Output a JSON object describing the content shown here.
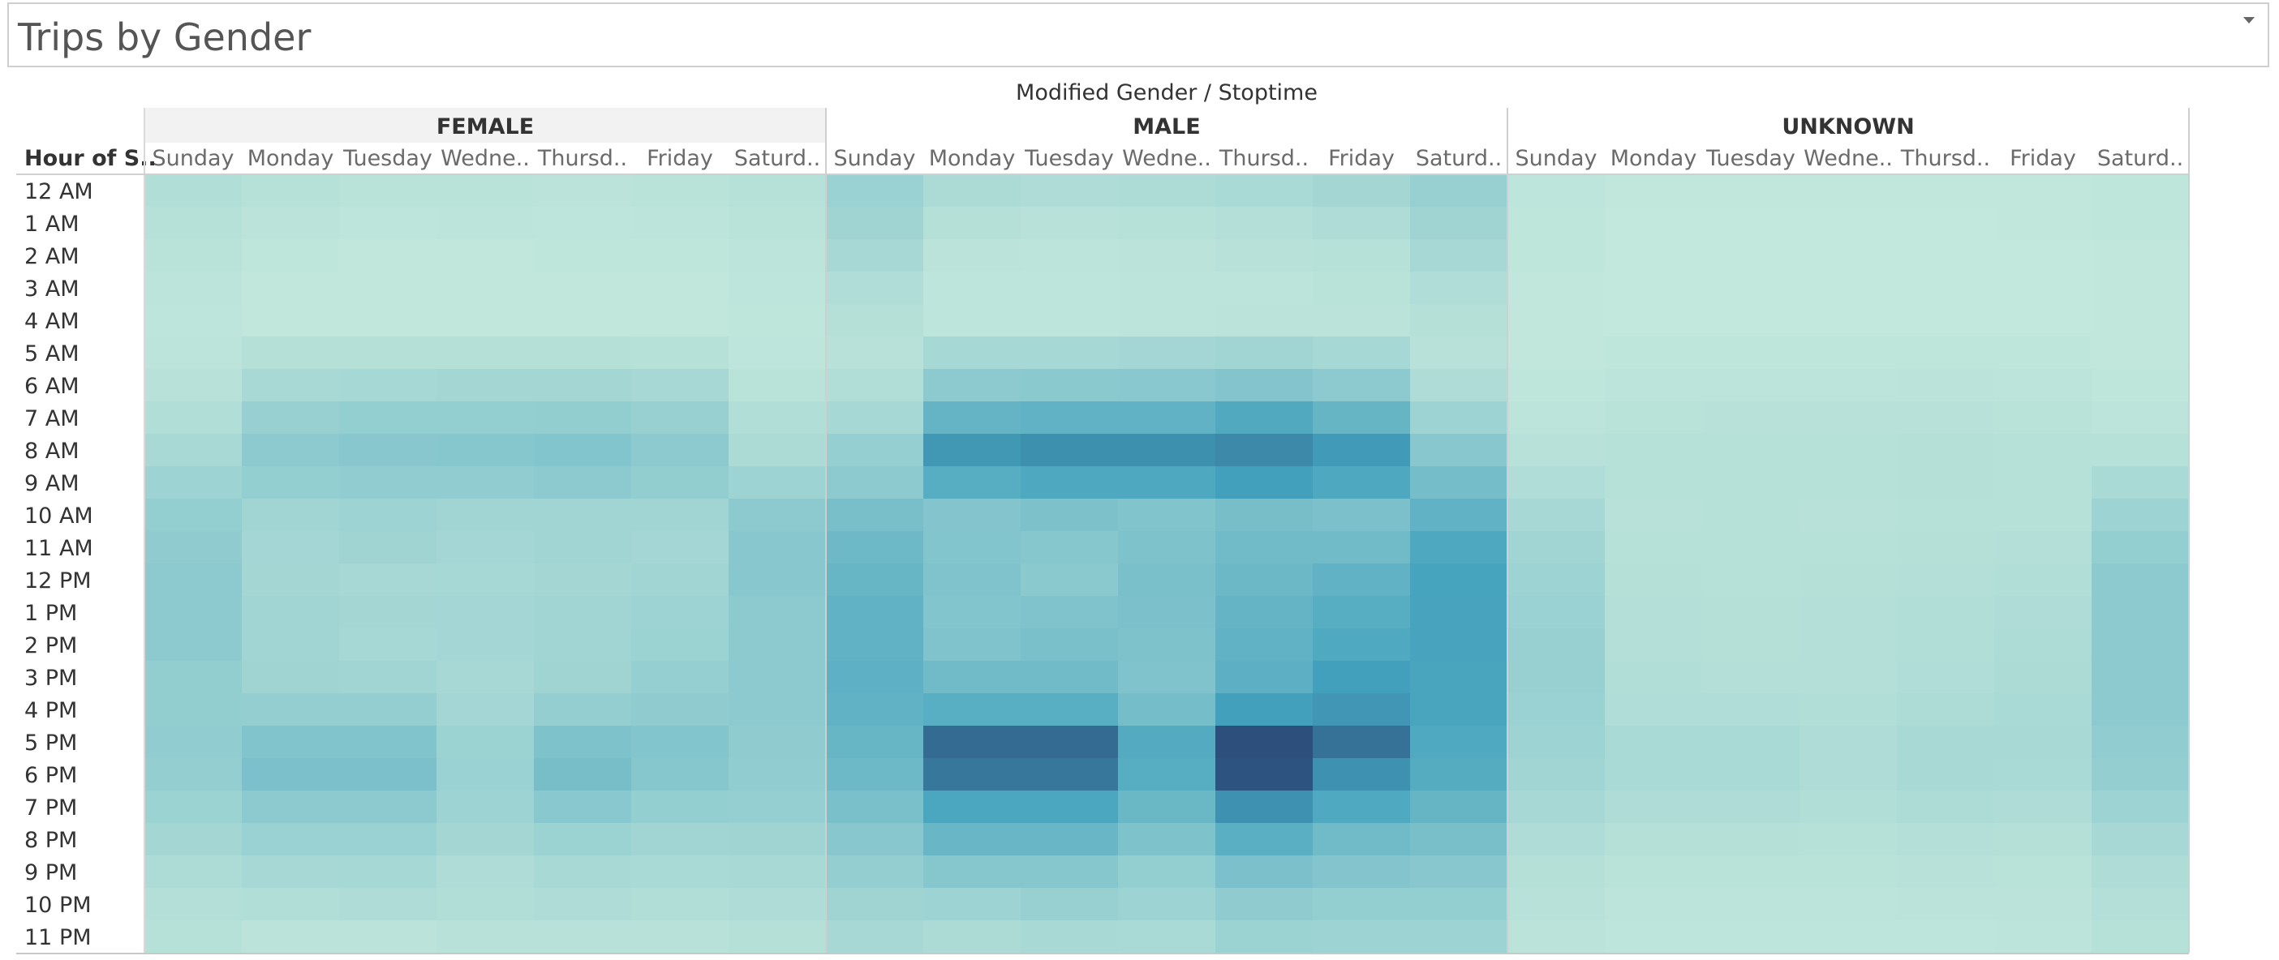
{
  "header": {
    "title": "Trips by Gender"
  },
  "chart_data": {
    "type": "heatmap",
    "title": "Trips by Gender",
    "column_header": "Modified Gender  /  Stoptime",
    "row_header": "Hour of S..",
    "groups": [
      "FEMALE",
      "MALE",
      "UNKNOWN"
    ],
    "day_labels": [
      "Sunday",
      "Monday",
      "Tuesday",
      "Wedne..",
      "Thursd..",
      "Friday",
      "Saturd.."
    ],
    "male_day_labels": [
      "Sunday",
      "Monday",
      "Tuesday",
      "Wedne..",
      "Thursd..",
      "Friday",
      "Saturd.."
    ],
    "rows": [
      "12 AM",
      "1 AM",
      "2 AM",
      "3 AM",
      "4 AM",
      "5 AM",
      "6 AM",
      "7 AM",
      "8 AM",
      "9 AM",
      "10 AM",
      "11 AM",
      "12 PM",
      "1 PM",
      "2 PM",
      "3 PM",
      "4 PM",
      "5 PM",
      "6 PM",
      "7 PM",
      "8 PM",
      "9 PM",
      "10 PM",
      "11 PM"
    ],
    "color_scale": {
      "low": "#c4e8dc",
      "mid": "#43a2bd",
      "high": "#2c4f7c"
    },
    "values_relative": {
      "FEMALE": [
        [
          0.12,
          0.09,
          0.07,
          0.07,
          0.06,
          0.07,
          0.09
        ],
        [
          0.09,
          0.06,
          0.04,
          0.05,
          0.04,
          0.05,
          0.07
        ],
        [
          0.07,
          0.03,
          0.02,
          0.02,
          0.03,
          0.03,
          0.05
        ],
        [
          0.05,
          0.02,
          0.02,
          0.02,
          0.02,
          0.02,
          0.04
        ],
        [
          0.04,
          0.02,
          0.02,
          0.02,
          0.02,
          0.02,
          0.03
        ],
        [
          0.05,
          0.1,
          0.1,
          0.1,
          0.1,
          0.09,
          0.04
        ],
        [
          0.08,
          0.18,
          0.2,
          0.21,
          0.21,
          0.19,
          0.07
        ],
        [
          0.12,
          0.29,
          0.32,
          0.32,
          0.33,
          0.29,
          0.12
        ],
        [
          0.18,
          0.37,
          0.4,
          0.41,
          0.43,
          0.37,
          0.16
        ],
        [
          0.25,
          0.32,
          0.34,
          0.34,
          0.36,
          0.33,
          0.26
        ],
        [
          0.32,
          0.23,
          0.25,
          0.23,
          0.23,
          0.23,
          0.36
        ],
        [
          0.35,
          0.22,
          0.24,
          0.22,
          0.23,
          0.22,
          0.4
        ],
        [
          0.36,
          0.21,
          0.19,
          0.2,
          0.21,
          0.23,
          0.4
        ],
        [
          0.36,
          0.23,
          0.21,
          0.22,
          0.23,
          0.26,
          0.37
        ],
        [
          0.36,
          0.23,
          0.2,
          0.22,
          0.23,
          0.27,
          0.37
        ],
        [
          0.33,
          0.24,
          0.23,
          0.19,
          0.24,
          0.3,
          0.37
        ],
        [
          0.33,
          0.31,
          0.31,
          0.22,
          0.31,
          0.35,
          0.36
        ],
        [
          0.34,
          0.44,
          0.44,
          0.27,
          0.46,
          0.43,
          0.35
        ],
        [
          0.31,
          0.48,
          0.48,
          0.28,
          0.51,
          0.41,
          0.34
        ],
        [
          0.27,
          0.36,
          0.36,
          0.26,
          0.39,
          0.32,
          0.3
        ],
        [
          0.21,
          0.28,
          0.28,
          0.21,
          0.27,
          0.23,
          0.24
        ],
        [
          0.15,
          0.19,
          0.2,
          0.14,
          0.18,
          0.17,
          0.18
        ],
        [
          0.11,
          0.12,
          0.14,
          0.12,
          0.14,
          0.12,
          0.14
        ],
        [
          0.09,
          0.06,
          0.06,
          0.08,
          0.08,
          0.08,
          0.1
        ]
      ],
      "MALE": [
        [
          0.28,
          0.16,
          0.14,
          0.15,
          0.17,
          0.21,
          0.29
        ],
        [
          0.24,
          0.1,
          0.08,
          0.09,
          0.11,
          0.14,
          0.24
        ],
        [
          0.19,
          0.06,
          0.05,
          0.06,
          0.08,
          0.09,
          0.19
        ],
        [
          0.13,
          0.04,
          0.04,
          0.05,
          0.05,
          0.07,
          0.13
        ],
        [
          0.1,
          0.04,
          0.04,
          0.05,
          0.06,
          0.06,
          0.1
        ],
        [
          0.08,
          0.2,
          0.2,
          0.22,
          0.23,
          0.2,
          0.08
        ],
        [
          0.12,
          0.37,
          0.38,
          0.39,
          0.42,
          0.37,
          0.14
        ],
        [
          0.2,
          0.63,
          0.66,
          0.66,
          0.76,
          0.62,
          0.25
        ],
        [
          0.3,
          0.91,
          0.96,
          0.96,
          1.0,
          0.9,
          0.4
        ],
        [
          0.37,
          0.72,
          0.78,
          0.78,
          0.86,
          0.78,
          0.52
        ],
        [
          0.5,
          0.42,
          0.47,
          0.44,
          0.51,
          0.48,
          0.66
        ],
        [
          0.57,
          0.43,
          0.41,
          0.46,
          0.55,
          0.55,
          0.78
        ],
        [
          0.61,
          0.45,
          0.38,
          0.49,
          0.58,
          0.66,
          0.83
        ],
        [
          0.65,
          0.43,
          0.45,
          0.48,
          0.63,
          0.72,
          0.82
        ],
        [
          0.65,
          0.45,
          0.49,
          0.46,
          0.65,
          0.77,
          0.82
        ],
        [
          0.67,
          0.55,
          0.55,
          0.45,
          0.68,
          0.86,
          0.81
        ],
        [
          0.65,
          0.71,
          0.71,
          0.52,
          0.86,
          0.92,
          0.81
        ],
        [
          0.61,
          1.18,
          1.18,
          0.74,
          1.36,
          1.14,
          0.77
        ],
        [
          0.57,
          1.11,
          1.11,
          0.72,
          1.32,
          0.95,
          0.73
        ],
        [
          0.49,
          0.8,
          0.8,
          0.59,
          0.95,
          0.77,
          0.62
        ],
        [
          0.4,
          0.6,
          0.6,
          0.46,
          0.69,
          0.55,
          0.5
        ],
        [
          0.31,
          0.41,
          0.41,
          0.32,
          0.48,
          0.42,
          0.4
        ],
        [
          0.24,
          0.26,
          0.29,
          0.25,
          0.35,
          0.32,
          0.32
        ],
        [
          0.19,
          0.16,
          0.18,
          0.17,
          0.27,
          0.25,
          0.26
        ]
      ],
      "UNKNOWN": [
        [
          0.04,
          0.02,
          0.02,
          0.02,
          0.02,
          0.02,
          0.03
        ],
        [
          0.03,
          0.01,
          0.01,
          0.01,
          0.01,
          0.02,
          0.03
        ],
        [
          0.03,
          0.01,
          0.01,
          0.01,
          0.01,
          0.01,
          0.02
        ],
        [
          0.02,
          0.01,
          0.01,
          0.01,
          0.01,
          0.01,
          0.02
        ],
        [
          0.02,
          0.01,
          0.01,
          0.01,
          0.01,
          0.01,
          0.02
        ],
        [
          0.02,
          0.03,
          0.03,
          0.03,
          0.03,
          0.03,
          0.02
        ],
        [
          0.03,
          0.05,
          0.05,
          0.05,
          0.06,
          0.05,
          0.03
        ],
        [
          0.05,
          0.07,
          0.08,
          0.08,
          0.08,
          0.07,
          0.05
        ],
        [
          0.08,
          0.09,
          0.09,
          0.09,
          0.1,
          0.09,
          0.09
        ],
        [
          0.13,
          0.09,
          0.09,
          0.09,
          0.1,
          0.09,
          0.17
        ],
        [
          0.19,
          0.08,
          0.09,
          0.08,
          0.09,
          0.09,
          0.25
        ],
        [
          0.23,
          0.09,
          0.09,
          0.09,
          0.1,
          0.11,
          0.32
        ],
        [
          0.26,
          0.1,
          0.09,
          0.1,
          0.11,
          0.12,
          0.36
        ],
        [
          0.28,
          0.11,
          0.1,
          0.11,
          0.12,
          0.14,
          0.37
        ],
        [
          0.29,
          0.11,
          0.1,
          0.11,
          0.12,
          0.15,
          0.37
        ],
        [
          0.29,
          0.12,
          0.11,
          0.11,
          0.13,
          0.16,
          0.37
        ],
        [
          0.28,
          0.13,
          0.13,
          0.12,
          0.15,
          0.17,
          0.36
        ],
        [
          0.26,
          0.17,
          0.17,
          0.14,
          0.18,
          0.18,
          0.34
        ],
        [
          0.23,
          0.17,
          0.17,
          0.14,
          0.18,
          0.17,
          0.31
        ],
        [
          0.19,
          0.14,
          0.14,
          0.12,
          0.15,
          0.14,
          0.26
        ],
        [
          0.14,
          0.1,
          0.1,
          0.09,
          0.11,
          0.1,
          0.19
        ],
        [
          0.1,
          0.07,
          0.07,
          0.07,
          0.08,
          0.07,
          0.14
        ],
        [
          0.08,
          0.05,
          0.05,
          0.05,
          0.06,
          0.06,
          0.11
        ],
        [
          0.06,
          0.04,
          0.04,
          0.04,
          0.04,
          0.05,
          0.09
        ]
      ]
    }
  }
}
